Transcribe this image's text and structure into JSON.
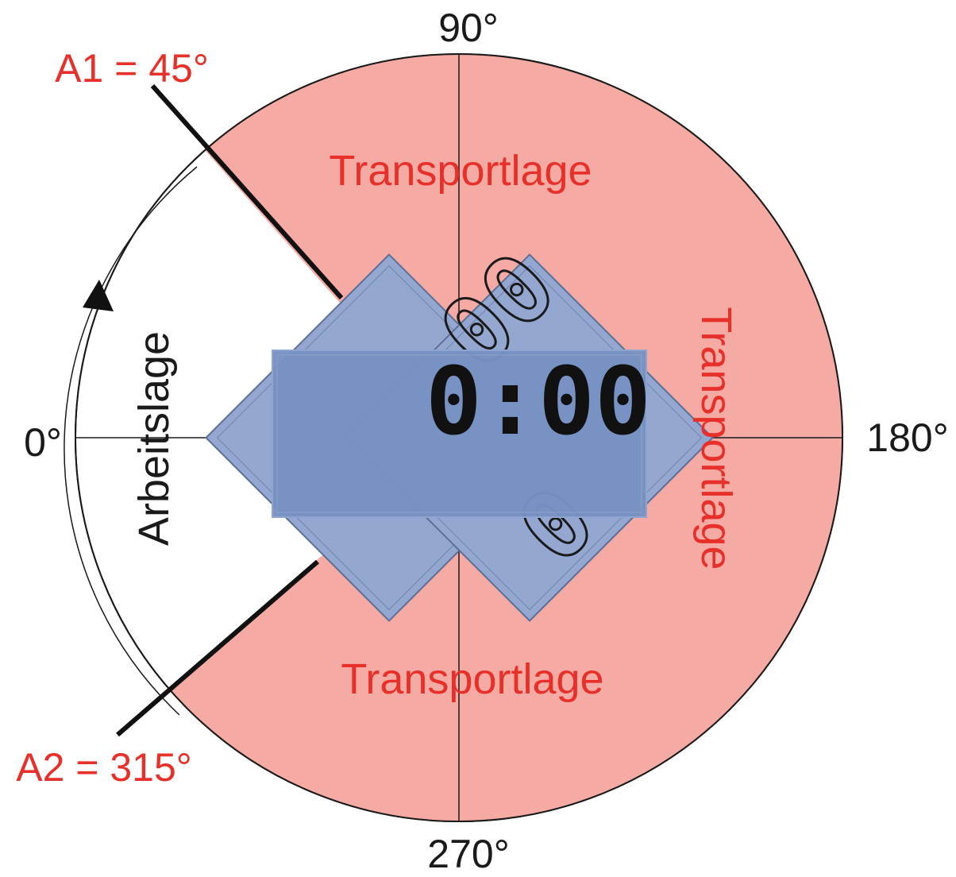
{
  "angles": {
    "a0": "0°",
    "a90": "90°",
    "a180": "180°",
    "a270": "270°"
  },
  "markers": {
    "a1": "A1 = 45°",
    "a2": "A2 = 315°"
  },
  "regions": {
    "transport_top": "Transportlage",
    "transport_right": "Transportlage",
    "transport_bottom": "Transportlage",
    "work": "Arbeitslage"
  },
  "display": {
    "time": "0:00",
    "ghost_top": "00",
    "ghost_bottom": "0"
  },
  "colors": {
    "transport_zone": "#f5aaa3",
    "display_body": "#7793c2",
    "display_tilted": "#94a7d0",
    "label_red": "#e8302a"
  }
}
